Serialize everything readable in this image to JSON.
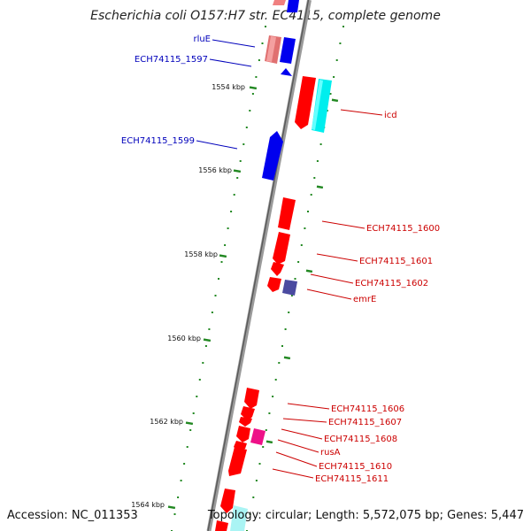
{
  "title": "Escherichia coli O157:H7 str. EC4115, complete genome",
  "footer": {
    "accession": "Accession: NC_011353",
    "topology": "Topology: circular; Length: 5,572,075 bp; Genes: 5,447"
  },
  "colors": {
    "forward_gene": "#ff0000",
    "reverse_gene": "#0000ff",
    "forward_label": "#cc0000",
    "reverse_label": "#0000bb",
    "tick": "#228822",
    "backbone": "#888888"
  },
  "ruler": {
    "labels": [
      "1554 kbp",
      "1556 kbp",
      "1558 kbp",
      "1560 kbp",
      "1562 kbp",
      "1564 kbp"
    ]
  },
  "genes": [
    {
      "name": "rluE",
      "strand": "reverse"
    },
    {
      "name": "ECH74115_1597",
      "strand": "reverse"
    },
    {
      "name": "icd",
      "strand": "forward"
    },
    {
      "name": "ECH74115_1599",
      "strand": "reverse"
    },
    {
      "name": "ECH74115_1600",
      "strand": "forward"
    },
    {
      "name": "ECH74115_1601",
      "strand": "forward"
    },
    {
      "name": "ECH74115_1602",
      "strand": "forward"
    },
    {
      "name": "emrE",
      "strand": "forward"
    },
    {
      "name": "ECH74115_1606",
      "strand": "forward"
    },
    {
      "name": "ECH74115_1607",
      "strand": "forward"
    },
    {
      "name": "ECH74115_1608",
      "strand": "forward"
    },
    {
      "name": "rusA",
      "strand": "forward"
    },
    {
      "name": "ECH74115_1610",
      "strand": "forward"
    },
    {
      "name": "ECH74115_1611",
      "strand": "forward"
    }
  ]
}
